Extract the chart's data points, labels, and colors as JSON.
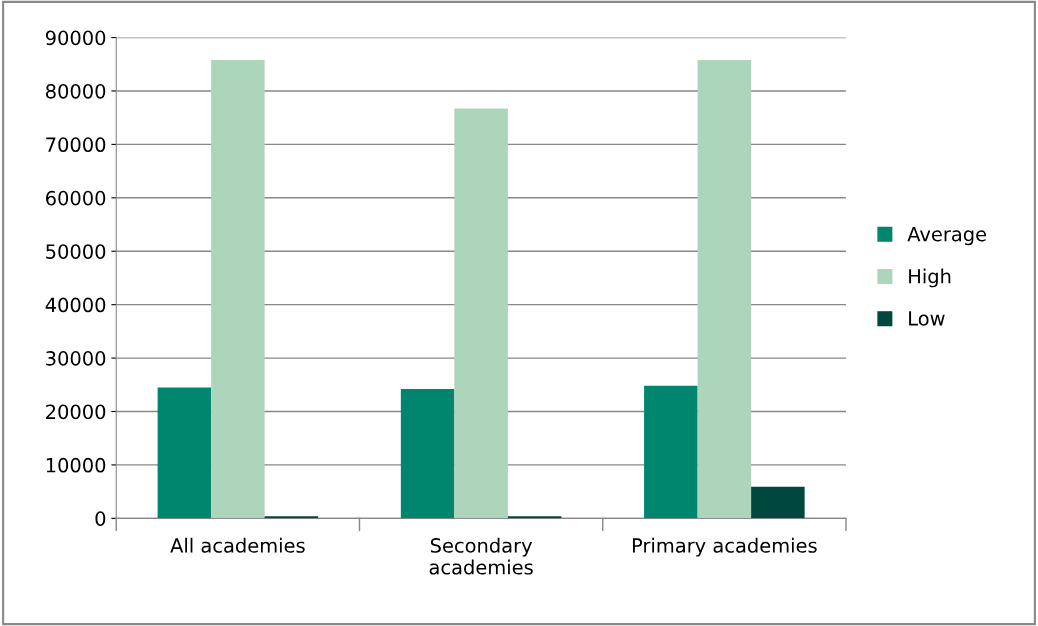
{
  "chart_data": {
    "type": "bar",
    "categories": [
      "All academies",
      "Secondary\nacademies",
      "Primary academies"
    ],
    "series": [
      {
        "name": "Average",
        "color": "#00856f",
        "values": [
          24500,
          24200,
          24800
        ]
      },
      {
        "name": "High",
        "color": "#add5bb",
        "values": [
          85800,
          76700,
          85800
        ]
      },
      {
        "name": "Low",
        "color": "#00483e",
        "values": [
          400,
          400,
          5900
        ]
      }
    ],
    "ylim": [
      0,
      90000
    ],
    "yticks": [
      0,
      10000,
      20000,
      30000,
      40000,
      50000,
      60000,
      70000,
      80000,
      90000
    ],
    "grid": "y",
    "legend": "right"
  }
}
